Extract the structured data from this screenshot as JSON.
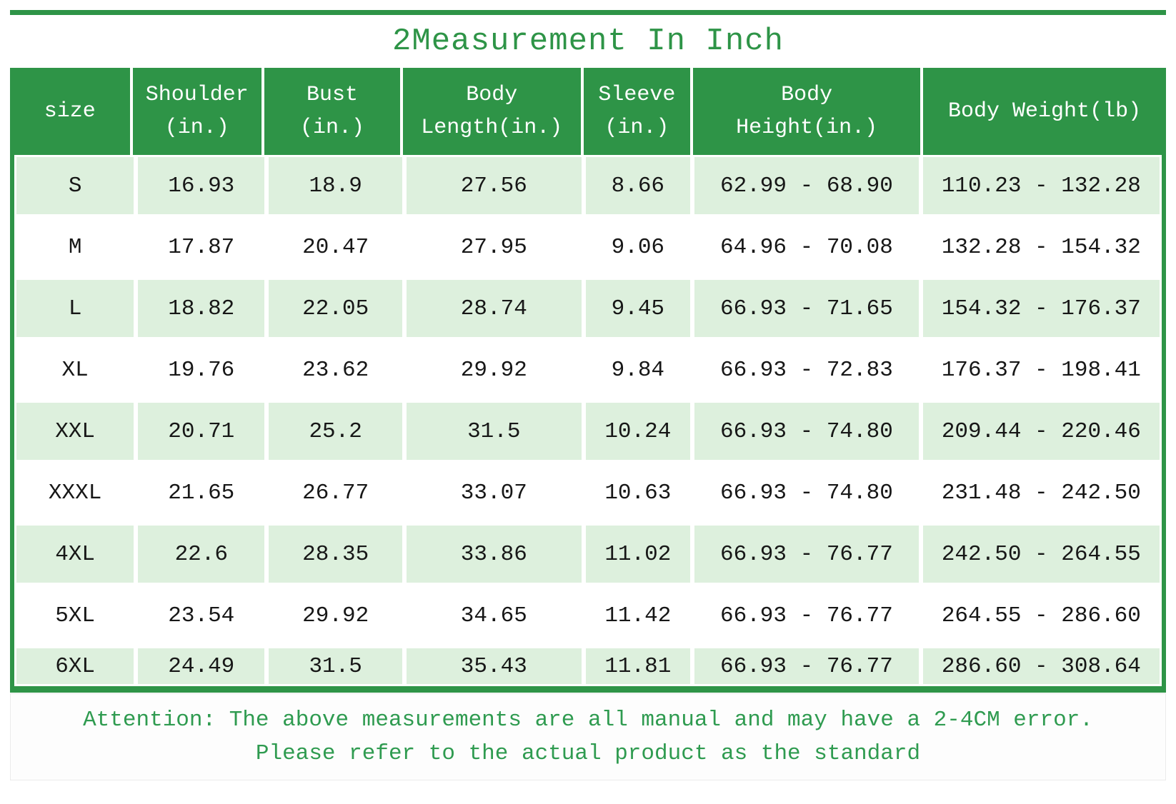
{
  "page": {
    "title": "2Measurement In Inch",
    "note_line1": "Attention: The above measurements are all manual and may have a 2-4CM error.",
    "note_line2": "Please refer to the actual product as the standard"
  },
  "colors": {
    "accent_green": "#2e9447",
    "row_light_green": "#ddf0dd",
    "note_text_green": "#2f9b50",
    "header_text": "#ffffff",
    "cell_text": "#171717"
  },
  "table": {
    "columns_display": [
      "size",
      "Shoulder\n(in.)",
      "Bust\n(in.)",
      "Body\nLength(in.)",
      "Sleeve\n(in.)",
      "Body\nHeight(in.)",
      "Body Weight(lb)"
    ]
  },
  "chart_data": {
    "type": "table",
    "title": "2Measurement In Inch",
    "columns": [
      "size",
      "Shoulder (in.)",
      "Bust (in.)",
      "Body Length(in.)",
      "Sleeve (in.)",
      "Body Height(in.)",
      "Body Weight(lb)"
    ],
    "rows": [
      [
        "S",
        "16.93",
        "18.9",
        "27.56",
        "8.66",
        "62.99 - 68.90",
        "110.23 - 132.28"
      ],
      [
        "M",
        "17.87",
        "20.47",
        "27.95",
        "9.06",
        "64.96 - 70.08",
        "132.28 - 154.32"
      ],
      [
        "L",
        "18.82",
        "22.05",
        "28.74",
        "9.45",
        "66.93 - 71.65",
        "154.32 - 176.37"
      ],
      [
        "XL",
        "19.76",
        "23.62",
        "29.92",
        "9.84",
        "66.93 - 72.83",
        "176.37 - 198.41"
      ],
      [
        "XXL",
        "20.71",
        "25.2",
        "31.5",
        "10.24",
        "66.93 - 74.80",
        "209.44 - 220.46"
      ],
      [
        "XXXL",
        "21.65",
        "26.77",
        "33.07",
        "10.63",
        "66.93 - 74.80",
        "231.48 - 242.50"
      ],
      [
        "4XL",
        "22.6",
        "28.35",
        "33.86",
        "11.02",
        "66.93 - 76.77",
        "242.50 - 264.55"
      ],
      [
        "5XL",
        "23.54",
        "29.92",
        "34.65",
        "11.42",
        "66.93 - 76.77",
        "264.55 - 286.60"
      ],
      [
        "6XL",
        "24.49",
        "31.5",
        "35.43",
        "11.81",
        "66.93 - 76.77",
        "286.60 - 308.64"
      ]
    ],
    "notes": [
      "Attention: The above measurements are all manual and may have a 2-4CM error.",
      "Please refer to the actual product as the standard"
    ],
    "layout": {
      "striped_rows": "odd rows light green, even rows white",
      "header_background": "#2e9447",
      "grid": "white separators between striped cells"
    }
  }
}
